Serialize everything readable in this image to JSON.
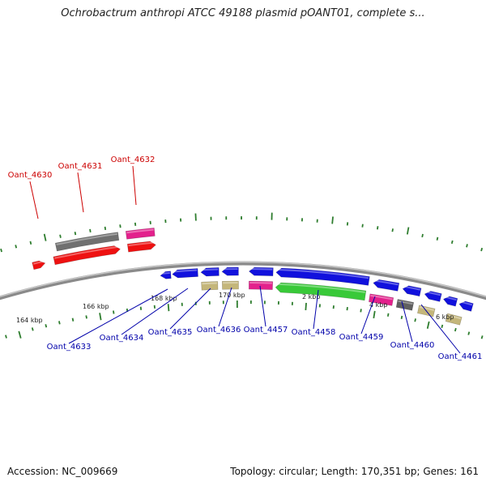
{
  "title": "Ochrobactrum anthropi ATCC 49188 plasmid pOANT01, complete s...",
  "footer": {
    "accession": "Accession: NC_009669",
    "summary": "Topology: circular; Length: 170,351 bp; Genes: 161"
  },
  "colors": {
    "backbone": "#808080",
    "forward_label": "#cc0000",
    "reverse_label": "#0000aa",
    "tick": "#2e7d2e"
  },
  "ticks": [
    {
      "kbp": 164,
      "label": "164 kbp"
    },
    {
      "kbp": 166,
      "label": "166 kbp"
    },
    {
      "kbp": 168,
      "label": "168 kbp"
    },
    {
      "kbp": 170,
      "label": "170 kbp"
    },
    {
      "kbp": 2,
      "label": "2 kbp"
    },
    {
      "kbp": 4,
      "label": "4 kbp"
    },
    {
      "kbp": 6,
      "label": "6 kbp"
    }
  ],
  "genes": [
    {
      "label": "Oant_4630",
      "strand": "forward"
    },
    {
      "label": "Oant_4631",
      "strand": "forward"
    },
    {
      "label": "Oant_4632",
      "strand": "forward"
    },
    {
      "label": "Oant_4633",
      "strand": "reverse"
    },
    {
      "label": "Oant_4634",
      "strand": "reverse"
    },
    {
      "label": "Oant_4635",
      "strand": "reverse"
    },
    {
      "label": "Oant_4636",
      "strand": "reverse"
    },
    {
      "label": "Oant_4457",
      "strand": "reverse"
    },
    {
      "label": "Oant_4458",
      "strand": "reverse"
    },
    {
      "label": "Oant_4459",
      "strand": "reverse"
    },
    {
      "label": "Oant_4460",
      "strand": "reverse"
    },
    {
      "label": "Oant_4461",
      "strand": "reverse"
    }
  ]
}
